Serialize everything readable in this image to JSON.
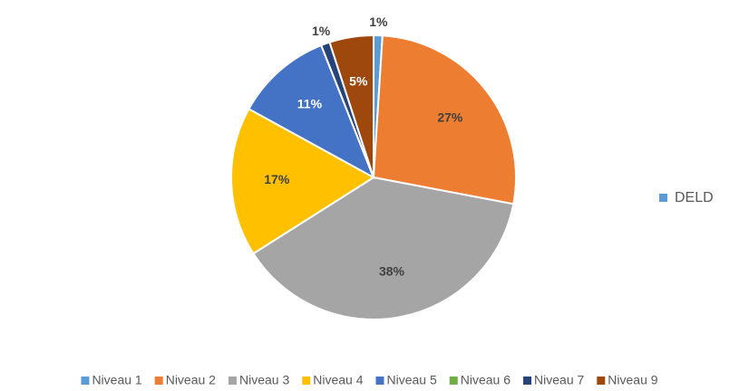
{
  "chart_data": {
    "type": "pie",
    "series_name": "DELD",
    "series_color": "#5b9bd5",
    "categories": [
      "Niveau 1",
      "Niveau 2",
      "Niveau 3",
      "Niveau 4",
      "Niveau 5",
      "Niveau 6",
      "Niveau 7",
      "Niveau 9"
    ],
    "values": [
      1,
      27,
      38,
      17,
      11,
      0,
      1,
      5
    ],
    "value_labels": [
      "1%",
      "27%",
      "38%",
      "17%",
      "11%",
      null,
      "1%",
      "5%"
    ],
    "colors": [
      "#5b9bd5",
      "#ed7d31",
      "#a5a5a5",
      "#ffc000",
      "#4472c4",
      "#70ad47",
      "#264478",
      "#9e480e"
    ],
    "label_colors": [
      "#404040",
      "#404040",
      "#404040",
      "#404040",
      "#ffffff",
      "#404040",
      "#404040",
      "#ffffff"
    ],
    "legend": "bottom"
  }
}
